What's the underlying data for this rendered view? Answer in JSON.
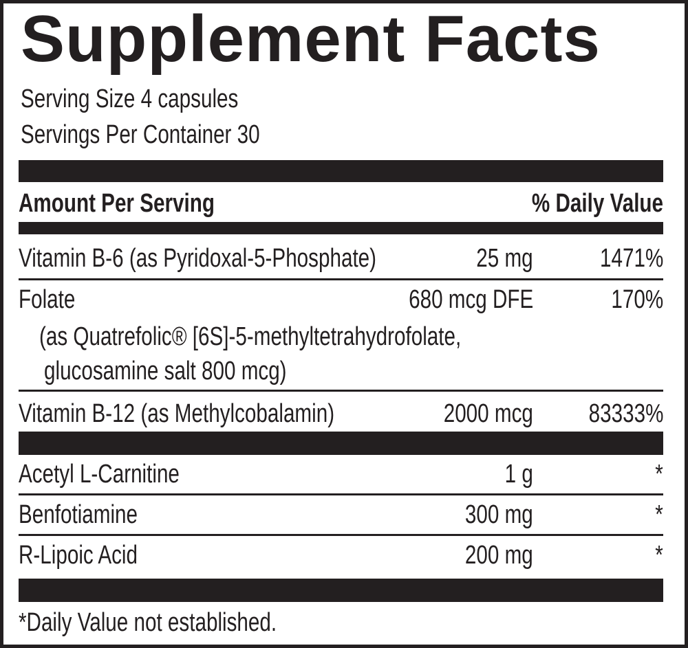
{
  "title": "Supplement Facts",
  "serving_size": "Serving Size 4 capsules",
  "servings_per_container": "Servings Per Container 30",
  "header": {
    "amount": "Amount Per Serving",
    "daily_value": "% Daily Value"
  },
  "rows": [
    {
      "name": "Vitamin B-6 (as Pyridoxal-5-Phosphate)",
      "amount": "25 mg",
      "dv": "1471%"
    },
    {
      "name": "Folate",
      "amount": "680 mcg DFE",
      "dv": "170%",
      "detail1": "(as Quatrefolic® [6S]-5-methyltetrahydrofolate,",
      "detail2": "glucosamine salt 800 mcg)"
    },
    {
      "name": "Vitamin B-12 (as Methylcobalamin)",
      "amount": "2000 mcg",
      "dv": "83333%"
    },
    {
      "name": "Acetyl L-Carnitine",
      "amount": "1 g",
      "dv": "*"
    },
    {
      "name": "Benfotiamine",
      "amount": "300 mg",
      "dv": "*"
    },
    {
      "name": "R-Lipoic Acid",
      "amount": "200 mg",
      "dv": "*"
    }
  ],
  "footnote": "*Daily Value not established."
}
